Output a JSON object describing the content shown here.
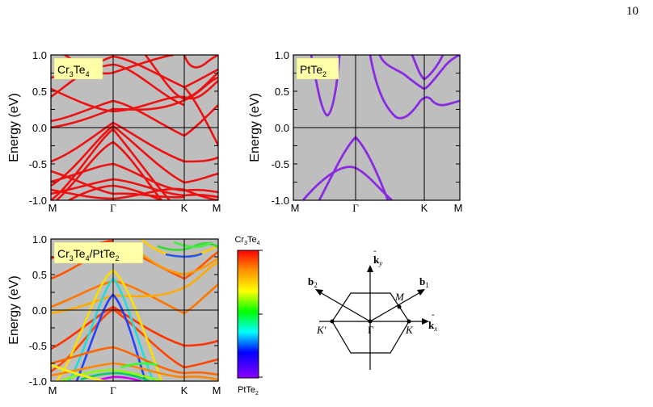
{
  "page_number": "10",
  "colors": {
    "panel_bg": "#bebebe",
    "cr_bands": "#ee1111",
    "pt_bands": "#8a2be2",
    "label_box": "#ffffa8"
  },
  "panels": [
    {
      "label_parts": [
        "Cr",
        "3",
        "Te",
        "4"
      ],
      "ylabel": "Energy (eV)",
      "yticks": [
        "1.0",
        "0.5",
        "0.0",
        "-0.5",
        "-1.0"
      ],
      "xticks": [
        "M",
        "Γ",
        "K",
        "M"
      ]
    },
    {
      "label_parts": [
        "PtTe",
        "2"
      ],
      "ylabel": "Energy (eV)",
      "yticks": [
        "1.0",
        "0.5",
        "0.0",
        "-0.5",
        "-1.0"
      ],
      "xticks": [
        "M",
        "Γ",
        "K",
        "M"
      ]
    },
    {
      "label_parts": [
        "Cr",
        "3",
        "Te",
        "4",
        "/PtTe",
        "2"
      ],
      "ylabel": "Energy (eV)",
      "yticks": [
        "1.0",
        "0.5",
        "0.0",
        "-0.5",
        "-1.0"
      ],
      "xticks": [
        "M",
        "Γ",
        "K",
        "M"
      ]
    }
  ],
  "colorbar": {
    "top_parts": [
      "Cr",
      "3",
      "Te",
      "4"
    ],
    "bottom_parts": [
      "PtTe",
      "2"
    ],
    "stops": [
      "#ff0000",
      "#ff8c00",
      "#ffff00",
      "#00ff00",
      "#00ffff",
      "#0000ff",
      "#8b00ff"
    ]
  },
  "bz": {
    "ky": "k",
    "ky_sub": "y",
    "kx": "k",
    "kx_sub": "x",
    "b1": "b",
    "b1_sub": "1",
    "b2": "b",
    "b2_sub": "2",
    "M": "M",
    "K": "K",
    "Kp": "K′",
    "G": "Γ"
  }
}
